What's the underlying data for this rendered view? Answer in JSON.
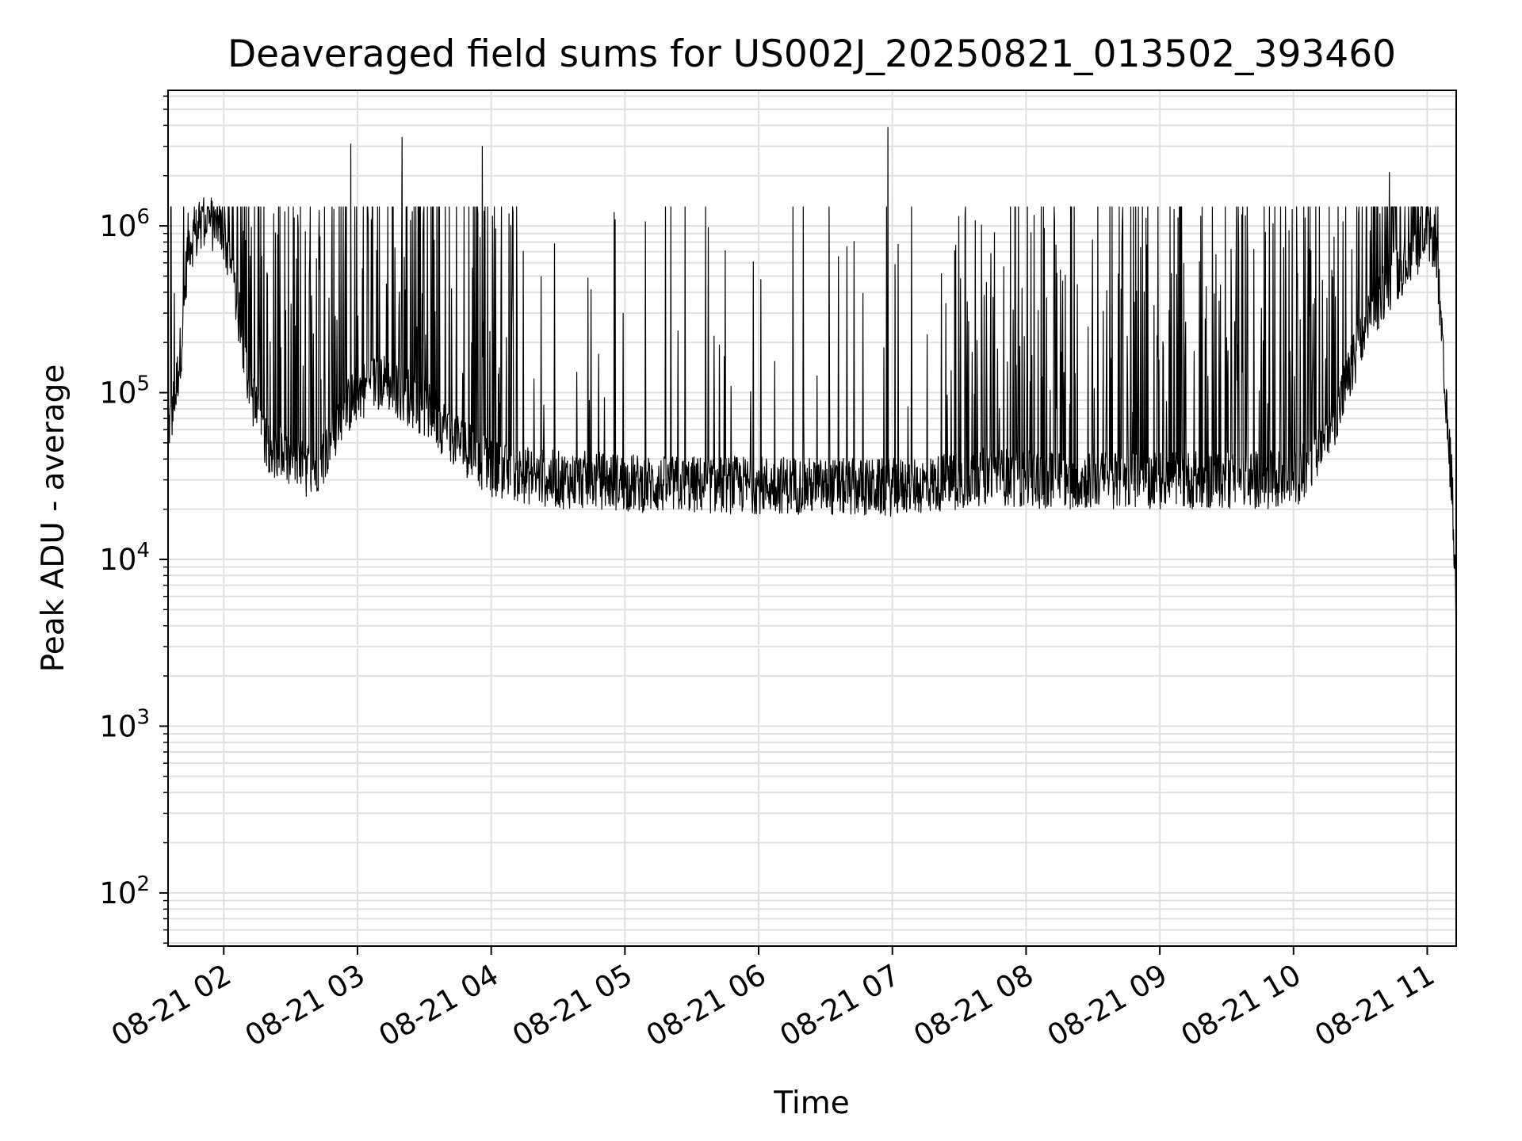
{
  "chart_data": {
    "type": "line",
    "title": "Deaveraged field sums for US002J_20250821_013502_393460",
    "xlabel": "Time",
    "ylabel": "Peak ADU - average",
    "yscale": "log",
    "grid": true,
    "line_color": "#000000",
    "grid_color": "#e0e0e0",
    "xlim": [
      "2025-08-21 01:35",
      "2025-08-21 11:13"
    ],
    "ylim": [
      48,
      6500000
    ],
    "x_ticks": [
      {
        "value": "2025-08-21 02:00",
        "label": "08-21 02"
      },
      {
        "value": "2025-08-21 03:00",
        "label": "08-21 03"
      },
      {
        "value": "2025-08-21 04:00",
        "label": "08-21 04"
      },
      {
        "value": "2025-08-21 05:00",
        "label": "08-21 05"
      },
      {
        "value": "2025-08-21 06:00",
        "label": "08-21 06"
      },
      {
        "value": "2025-08-21 07:00",
        "label": "08-21 07"
      },
      {
        "value": "2025-08-21 08:00",
        "label": "08-21 08"
      },
      {
        "value": "2025-08-21 09:00",
        "label": "08-21 09"
      },
      {
        "value": "2025-08-21 10:00",
        "label": "08-21 10"
      },
      {
        "value": "2025-08-21 11:00",
        "label": "08-21 11"
      }
    ],
    "y_ticks": [
      {
        "value": 100,
        "base": "10",
        "exp": "2"
      },
      {
        "value": 1000,
        "base": "10",
        "exp": "3"
      },
      {
        "value": 10000,
        "base": "10",
        "exp": "4"
      },
      {
        "value": 100000,
        "base": "10",
        "exp": "5"
      },
      {
        "value": 1000000,
        "base": "10",
        "exp": "6"
      }
    ],
    "series": [
      {
        "note_x": "time",
        "x": [
          "2025-08-21 01:35",
          "2025-08-21 01:38",
          "2025-08-21 01:41",
          "2025-08-21 01:44",
          "2025-08-21 01:48",
          "2025-08-21 01:52",
          "2025-08-21 01:56",
          "2025-08-21 02:00",
          "2025-08-21 02:05",
          "2025-08-21 02:10",
          "2025-08-21 02:15",
          "2025-08-21 02:20",
          "2025-08-21 02:25",
          "2025-08-21 02:30",
          "2025-08-21 02:35",
          "2025-08-21 02:40",
          "2025-08-21 02:45",
          "2025-08-21 02:50",
          "2025-08-21 02:55",
          "2025-08-21 03:00",
          "2025-08-21 03:10",
          "2025-08-21 03:20",
          "2025-08-21 03:30",
          "2025-08-21 03:40",
          "2025-08-21 03:50",
          "2025-08-21 04:00",
          "2025-08-21 04:15",
          "2025-08-21 04:30",
          "2025-08-21 04:45",
          "2025-08-21 05:00",
          "2025-08-21 05:15",
          "2025-08-21 05:30",
          "2025-08-21 05:45",
          "2025-08-21 06:00",
          "2025-08-21 06:15",
          "2025-08-21 06:30",
          "2025-08-21 06:45",
          "2025-08-21 07:00",
          "2025-08-21 07:15",
          "2025-08-21 07:30",
          "2025-08-21 07:45",
          "2025-08-21 08:00",
          "2025-08-21 08:15",
          "2025-08-21 08:30",
          "2025-08-21 08:45",
          "2025-08-21 09:00",
          "2025-08-21 09:15",
          "2025-08-21 09:30",
          "2025-08-21 09:45",
          "2025-08-21 10:00",
          "2025-08-21 10:10",
          "2025-08-21 10:20",
          "2025-08-21 10:30",
          "2025-08-21 10:40",
          "2025-08-21 10:50",
          "2025-08-21 11:00",
          "2025-08-21 11:04",
          "2025-08-21 11:08",
          "2025-08-21 11:11",
          "2025-08-21 11:13"
        ],
        "baseline": [
          60000,
          90000,
          200000,
          800000,
          900000,
          1100000,
          1000000,
          900000,
          400000,
          150000,
          70000,
          50000,
          42000,
          38000,
          35000,
          35000,
          42000,
          60000,
          80000,
          100000,
          120000,
          100000,
          80000,
          60000,
          45000,
          35000,
          32000,
          30000,
          30000,
          29000,
          28000,
          28000,
          28000,
          28000,
          28000,
          27000,
          27000,
          27000,
          28000,
          30000,
          32000,
          30000,
          30000,
          30000,
          30000,
          30000,
          30000,
          30000,
          30000,
          30000,
          40000,
          80000,
          200000,
          400000,
          600000,
          900000,
          800000,
          90000,
          30000,
          5000
        ],
        "spike_peaks": [
          {
            "x": "2025-08-21 02:57",
            "y": 3100000
          },
          {
            "x": "2025-08-21 03:20",
            "y": 3400000
          },
          {
            "x": "2025-08-21 03:56",
            "y": 3000000
          },
          {
            "x": "2025-08-21 06:58",
            "y": 3900000
          },
          {
            "x": "2025-08-21 10:43",
            "y": 2100000
          }
        ],
        "typical_spike_max": 1300000
      }
    ]
  }
}
